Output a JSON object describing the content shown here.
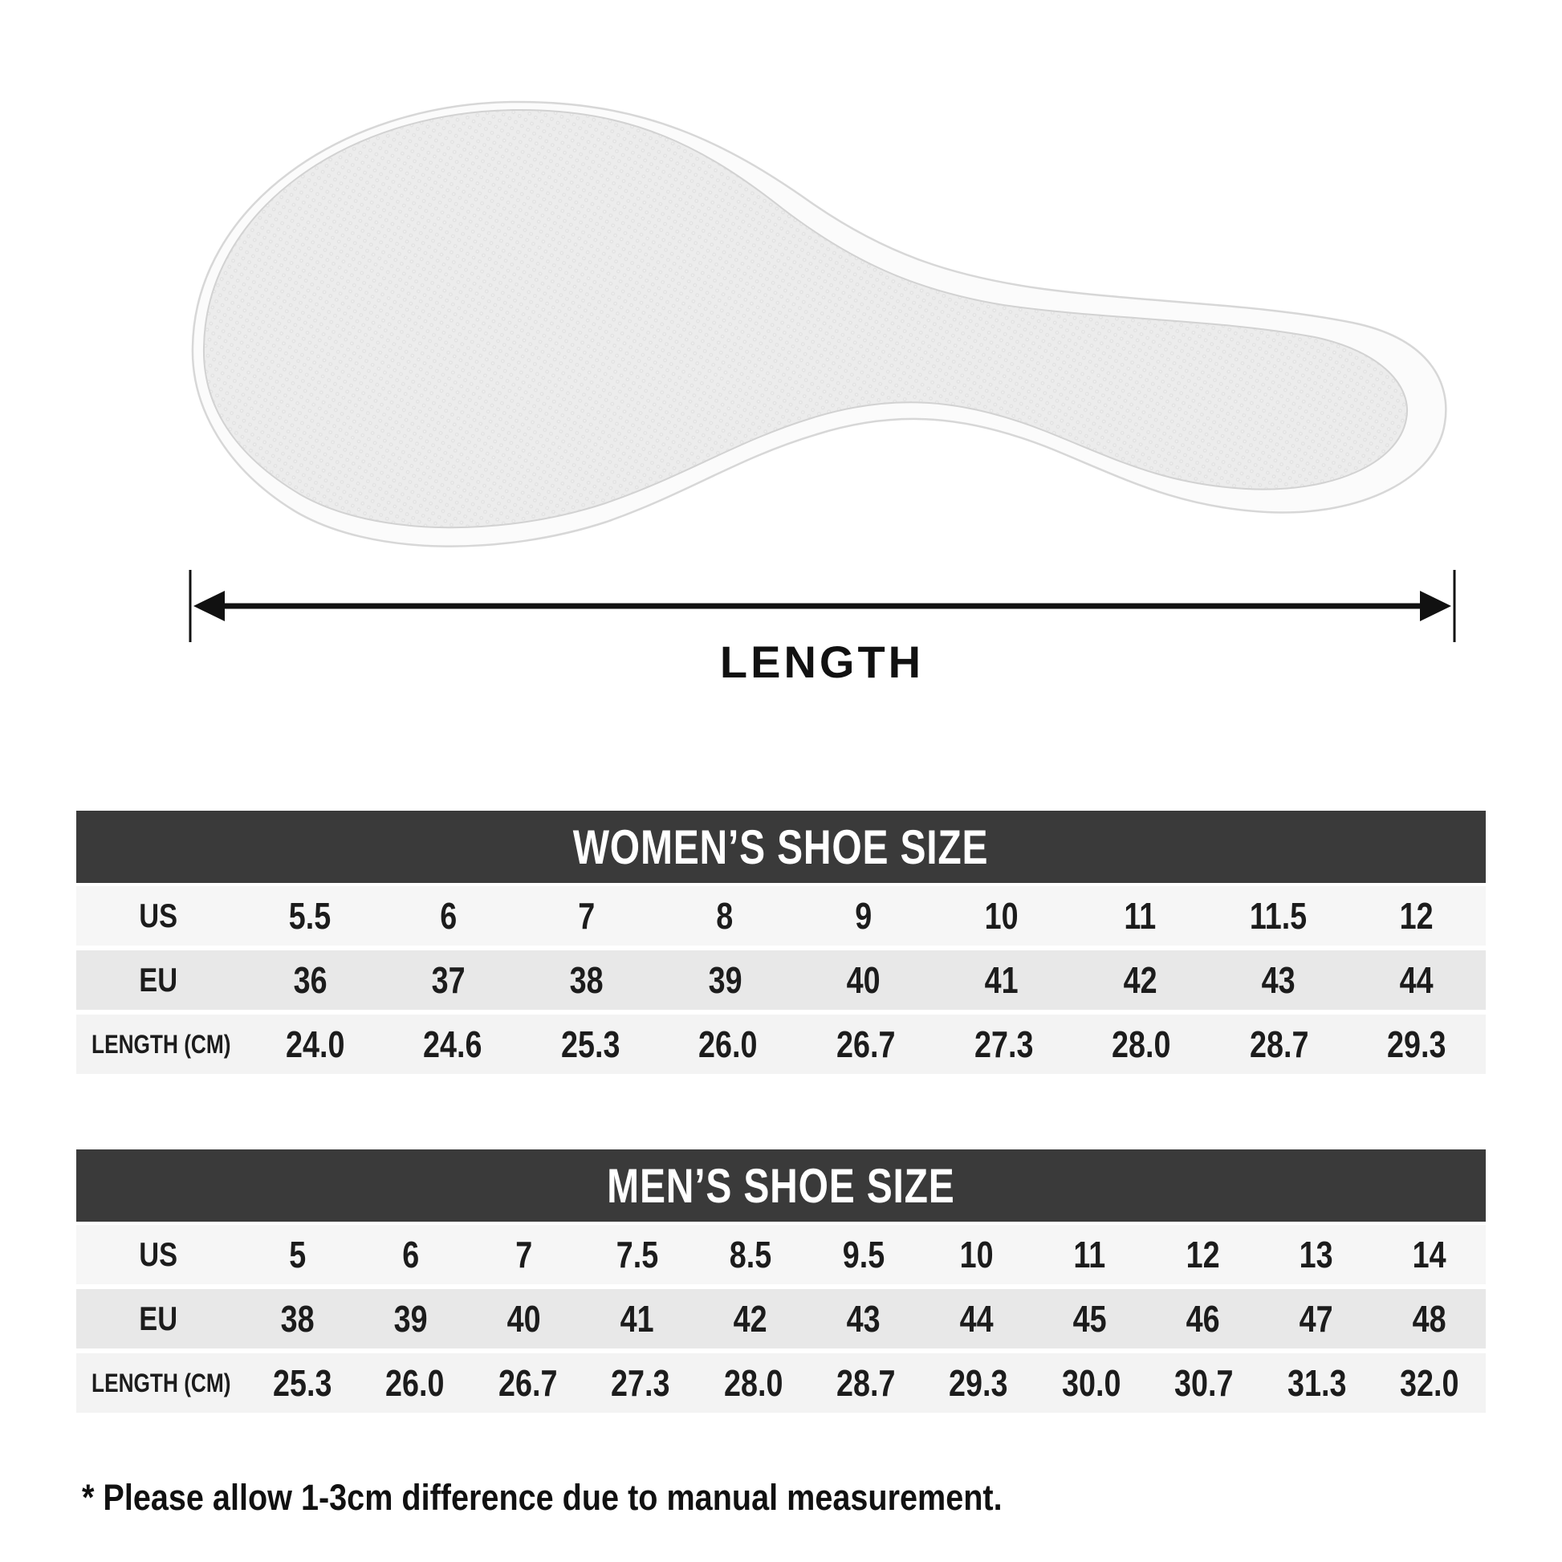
{
  "length_indicator": {
    "label": "LENGTH",
    "icon": "double-arrow-horizontal"
  },
  "insole": {
    "icon": "shoe-insole-top-view",
    "surface_color": "#ebebeb",
    "rim_color": "#fbfbfb",
    "outline_color": "#d7d7d7"
  },
  "colors": {
    "header_bar": "#3a3a3a",
    "header_text": "#ffffff",
    "row_light": "#f6f6f6",
    "row_mid": "#e8e8e8",
    "text": "#1c1c1c",
    "background": "#ffffff"
  },
  "women_table": {
    "title": "WOMEN’S SHOE SIZE",
    "rows": [
      {
        "label": "US",
        "values": [
          "5.5",
          "6",
          "7",
          "8",
          "9",
          "10",
          "11",
          "11.5",
          "12"
        ]
      },
      {
        "label": "EU",
        "values": [
          "36",
          "37",
          "38",
          "39",
          "40",
          "41",
          "42",
          "43",
          "44"
        ]
      },
      {
        "label": "LENGTH (CM)",
        "values": [
          "24.0",
          "24.6",
          "25.3",
          "26.0",
          "26.7",
          "27.3",
          "28.0",
          "28.7",
          "29.3"
        ]
      }
    ]
  },
  "men_table": {
    "title": "MEN’S SHOE SIZE",
    "rows": [
      {
        "label": "US",
        "values": [
          "5",
          "6",
          "7",
          "7.5",
          "8.5",
          "9.5",
          "10",
          "11",
          "12",
          "13",
          "14"
        ]
      },
      {
        "label": "EU",
        "values": [
          "38",
          "39",
          "40",
          "41",
          "42",
          "43",
          "44",
          "45",
          "46",
          "47",
          "48"
        ]
      },
      {
        "label": "LENGTH (CM)",
        "values": [
          "25.3",
          "26.0",
          "26.7",
          "27.3",
          "28.0",
          "28.7",
          "29.3",
          "30.0",
          "30.7",
          "31.3",
          "32.0"
        ]
      }
    ]
  },
  "footnote": "* Please allow 1-3cm difference due to manual measurement.",
  "chart_data": [
    {
      "type": "table",
      "title": "WOMEN'S SHOE SIZE",
      "row_headers": [
        "US",
        "EU",
        "LENGTH (CM)"
      ],
      "data": [
        [
          5.5,
          6,
          7,
          8,
          9,
          10,
          11,
          11.5,
          12
        ],
        [
          36,
          37,
          38,
          39,
          40,
          41,
          42,
          43,
          44
        ],
        [
          24.0,
          24.6,
          25.3,
          26.0,
          26.7,
          27.3,
          28.0,
          28.7,
          29.3
        ]
      ]
    },
    {
      "type": "table",
      "title": "MEN'S SHOE SIZE",
      "row_headers": [
        "US",
        "EU",
        "LENGTH (CM)"
      ],
      "data": [
        [
          5,
          6,
          7,
          7.5,
          8.5,
          9.5,
          10,
          11,
          12,
          13,
          14
        ],
        [
          38,
          39,
          40,
          41,
          42,
          43,
          44,
          45,
          46,
          47,
          48
        ],
        [
          25.3,
          26.0,
          26.7,
          27.3,
          28.0,
          28.7,
          29.3,
          30.0,
          30.7,
          31.3,
          32.0
        ]
      ]
    }
  ]
}
